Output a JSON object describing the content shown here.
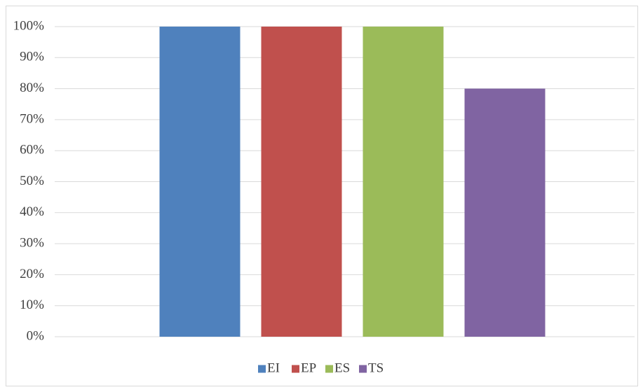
{
  "chart_data": {
    "type": "bar",
    "categories": [
      null
    ],
    "series": [
      {
        "name": "EI",
        "color": "#4f81bd",
        "values": [
          100
        ]
      },
      {
        "name": "EP",
        "color": "#c0504d",
        "values": [
          100
        ]
      },
      {
        "name": "ES",
        "color": "#9bbb59",
        "values": [
          100
        ]
      },
      {
        "name": "TS",
        "color": "#8064a2",
        "values": [
          80
        ]
      }
    ],
    "ylim": [
      0,
      100
    ],
    "yticks": [
      {
        "value": 0,
        "label": "0%"
      },
      {
        "value": 10,
        "label": "10%"
      },
      {
        "value": 20,
        "label": "20%"
      },
      {
        "value": 30,
        "label": "30%"
      },
      {
        "value": 40,
        "label": "40%"
      },
      {
        "value": 50,
        "label": "50%"
      },
      {
        "value": 60,
        "label": "60%"
      },
      {
        "value": 70,
        "label": "70%"
      },
      {
        "value": 80,
        "label": "80%"
      },
      {
        "value": 90,
        "label": "90%"
      },
      {
        "value": 100,
        "label": "100%"
      }
    ],
    "grid": true,
    "legend": "bottom"
  }
}
